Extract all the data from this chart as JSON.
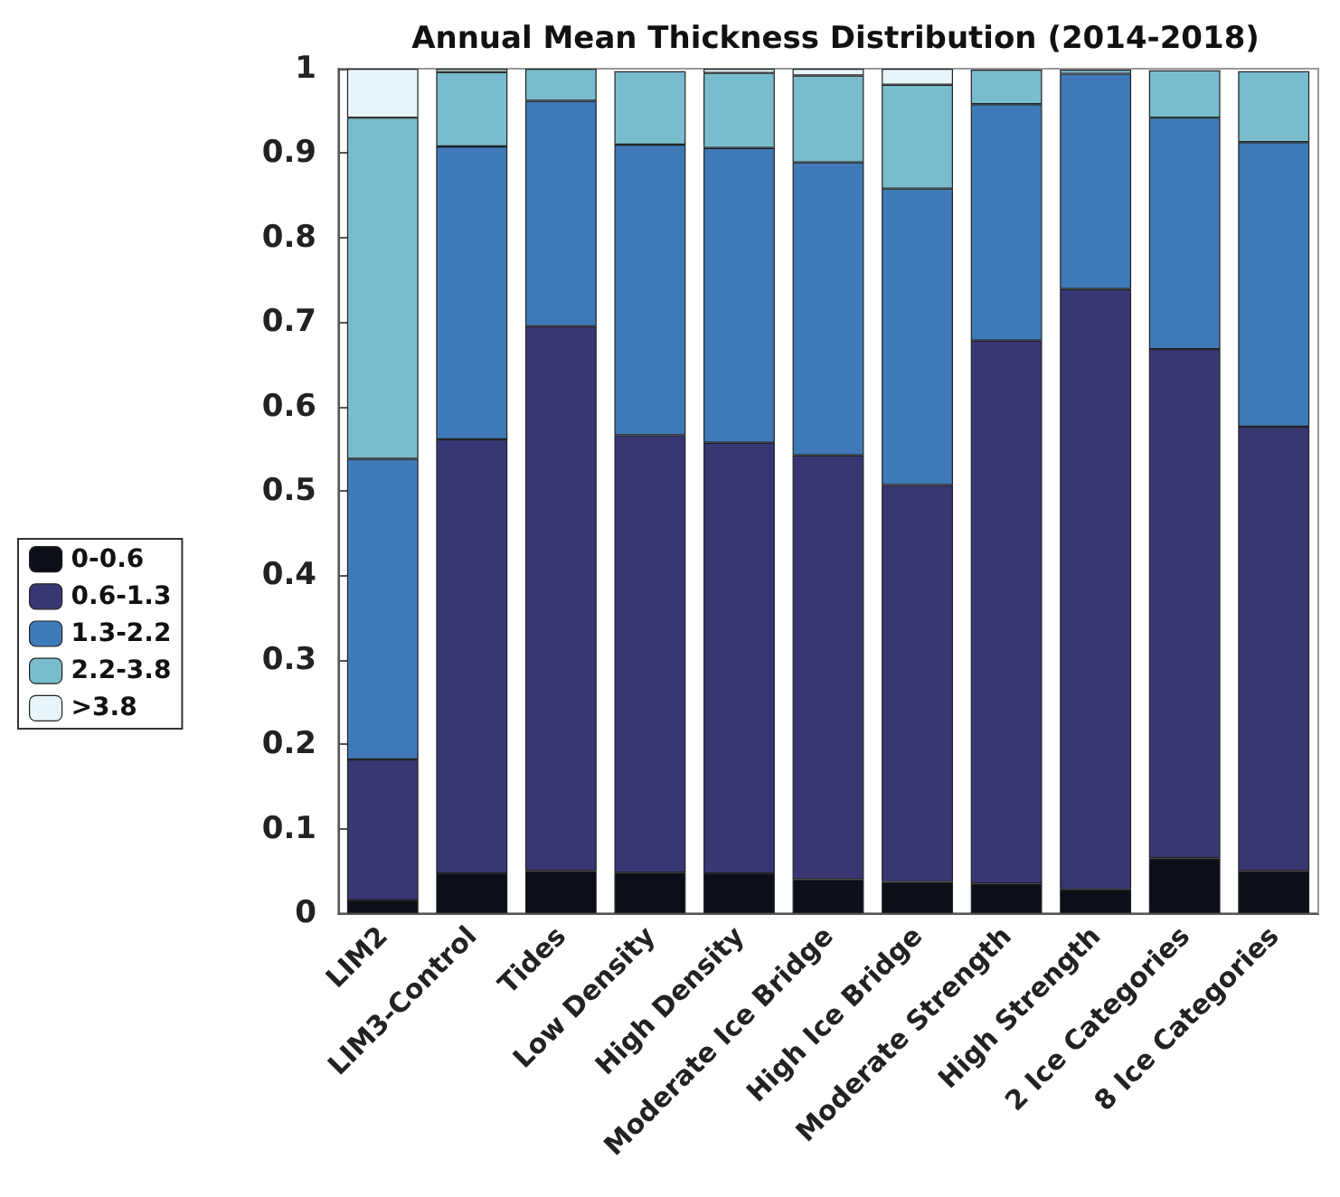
{
  "chart_data": {
    "type": "bar",
    "stacked": true,
    "title": "Annual Mean Thickness Distribution (2014-2018)",
    "categories": [
      "LIM2",
      "LIM3-Control",
      "Tides",
      "Low Density",
      "High Density",
      "Moderate Ice Bridge",
      "High Ice Bridge",
      "Moderate Strength",
      "High Strength",
      "2 Ice Categories",
      "8 Ice Categories"
    ],
    "series": [
      {
        "name": "0-0.6",
        "color": "#0c0f18",
        "values": [
          0.015,
          0.047,
          0.05,
          0.048,
          0.047,
          0.04,
          0.037,
          0.035,
          0.028,
          0.065,
          0.05
        ]
      },
      {
        "name": "0.6-1.3",
        "color": "#383773",
        "values": [
          0.167,
          0.514,
          0.645,
          0.518,
          0.51,
          0.502,
          0.47,
          0.643,
          0.711,
          0.603,
          0.526
        ]
      },
      {
        "name": "1.3-2.2",
        "color": "#3f7ab8",
        "values": [
          0.356,
          0.347,
          0.267,
          0.344,
          0.349,
          0.347,
          0.351,
          0.28,
          0.255,
          0.274,
          0.337
        ]
      },
      {
        "name": "2.2-3.8",
        "color": "#79bccd",
        "values": [
          0.404,
          0.088,
          0.038,
          0.087,
          0.089,
          0.103,
          0.123,
          0.041,
          0.005,
          0.056,
          0.084
        ]
      },
      {
        "name": ">3.8",
        "color": "#e8f5f8",
        "values": [
          0.058,
          0.004,
          0,
          null,
          0.005,
          0.008,
          0.019,
          null,
          0,
          null,
          null
        ]
      }
    ],
    "ylim": [
      0,
      1
    ],
    "yticks": [
      0,
      0.1,
      0.2,
      0.3,
      0.4,
      0.5,
      0.6,
      0.7,
      0.8,
      0.9,
      1
    ],
    "grid": false,
    "legend": "left"
  }
}
